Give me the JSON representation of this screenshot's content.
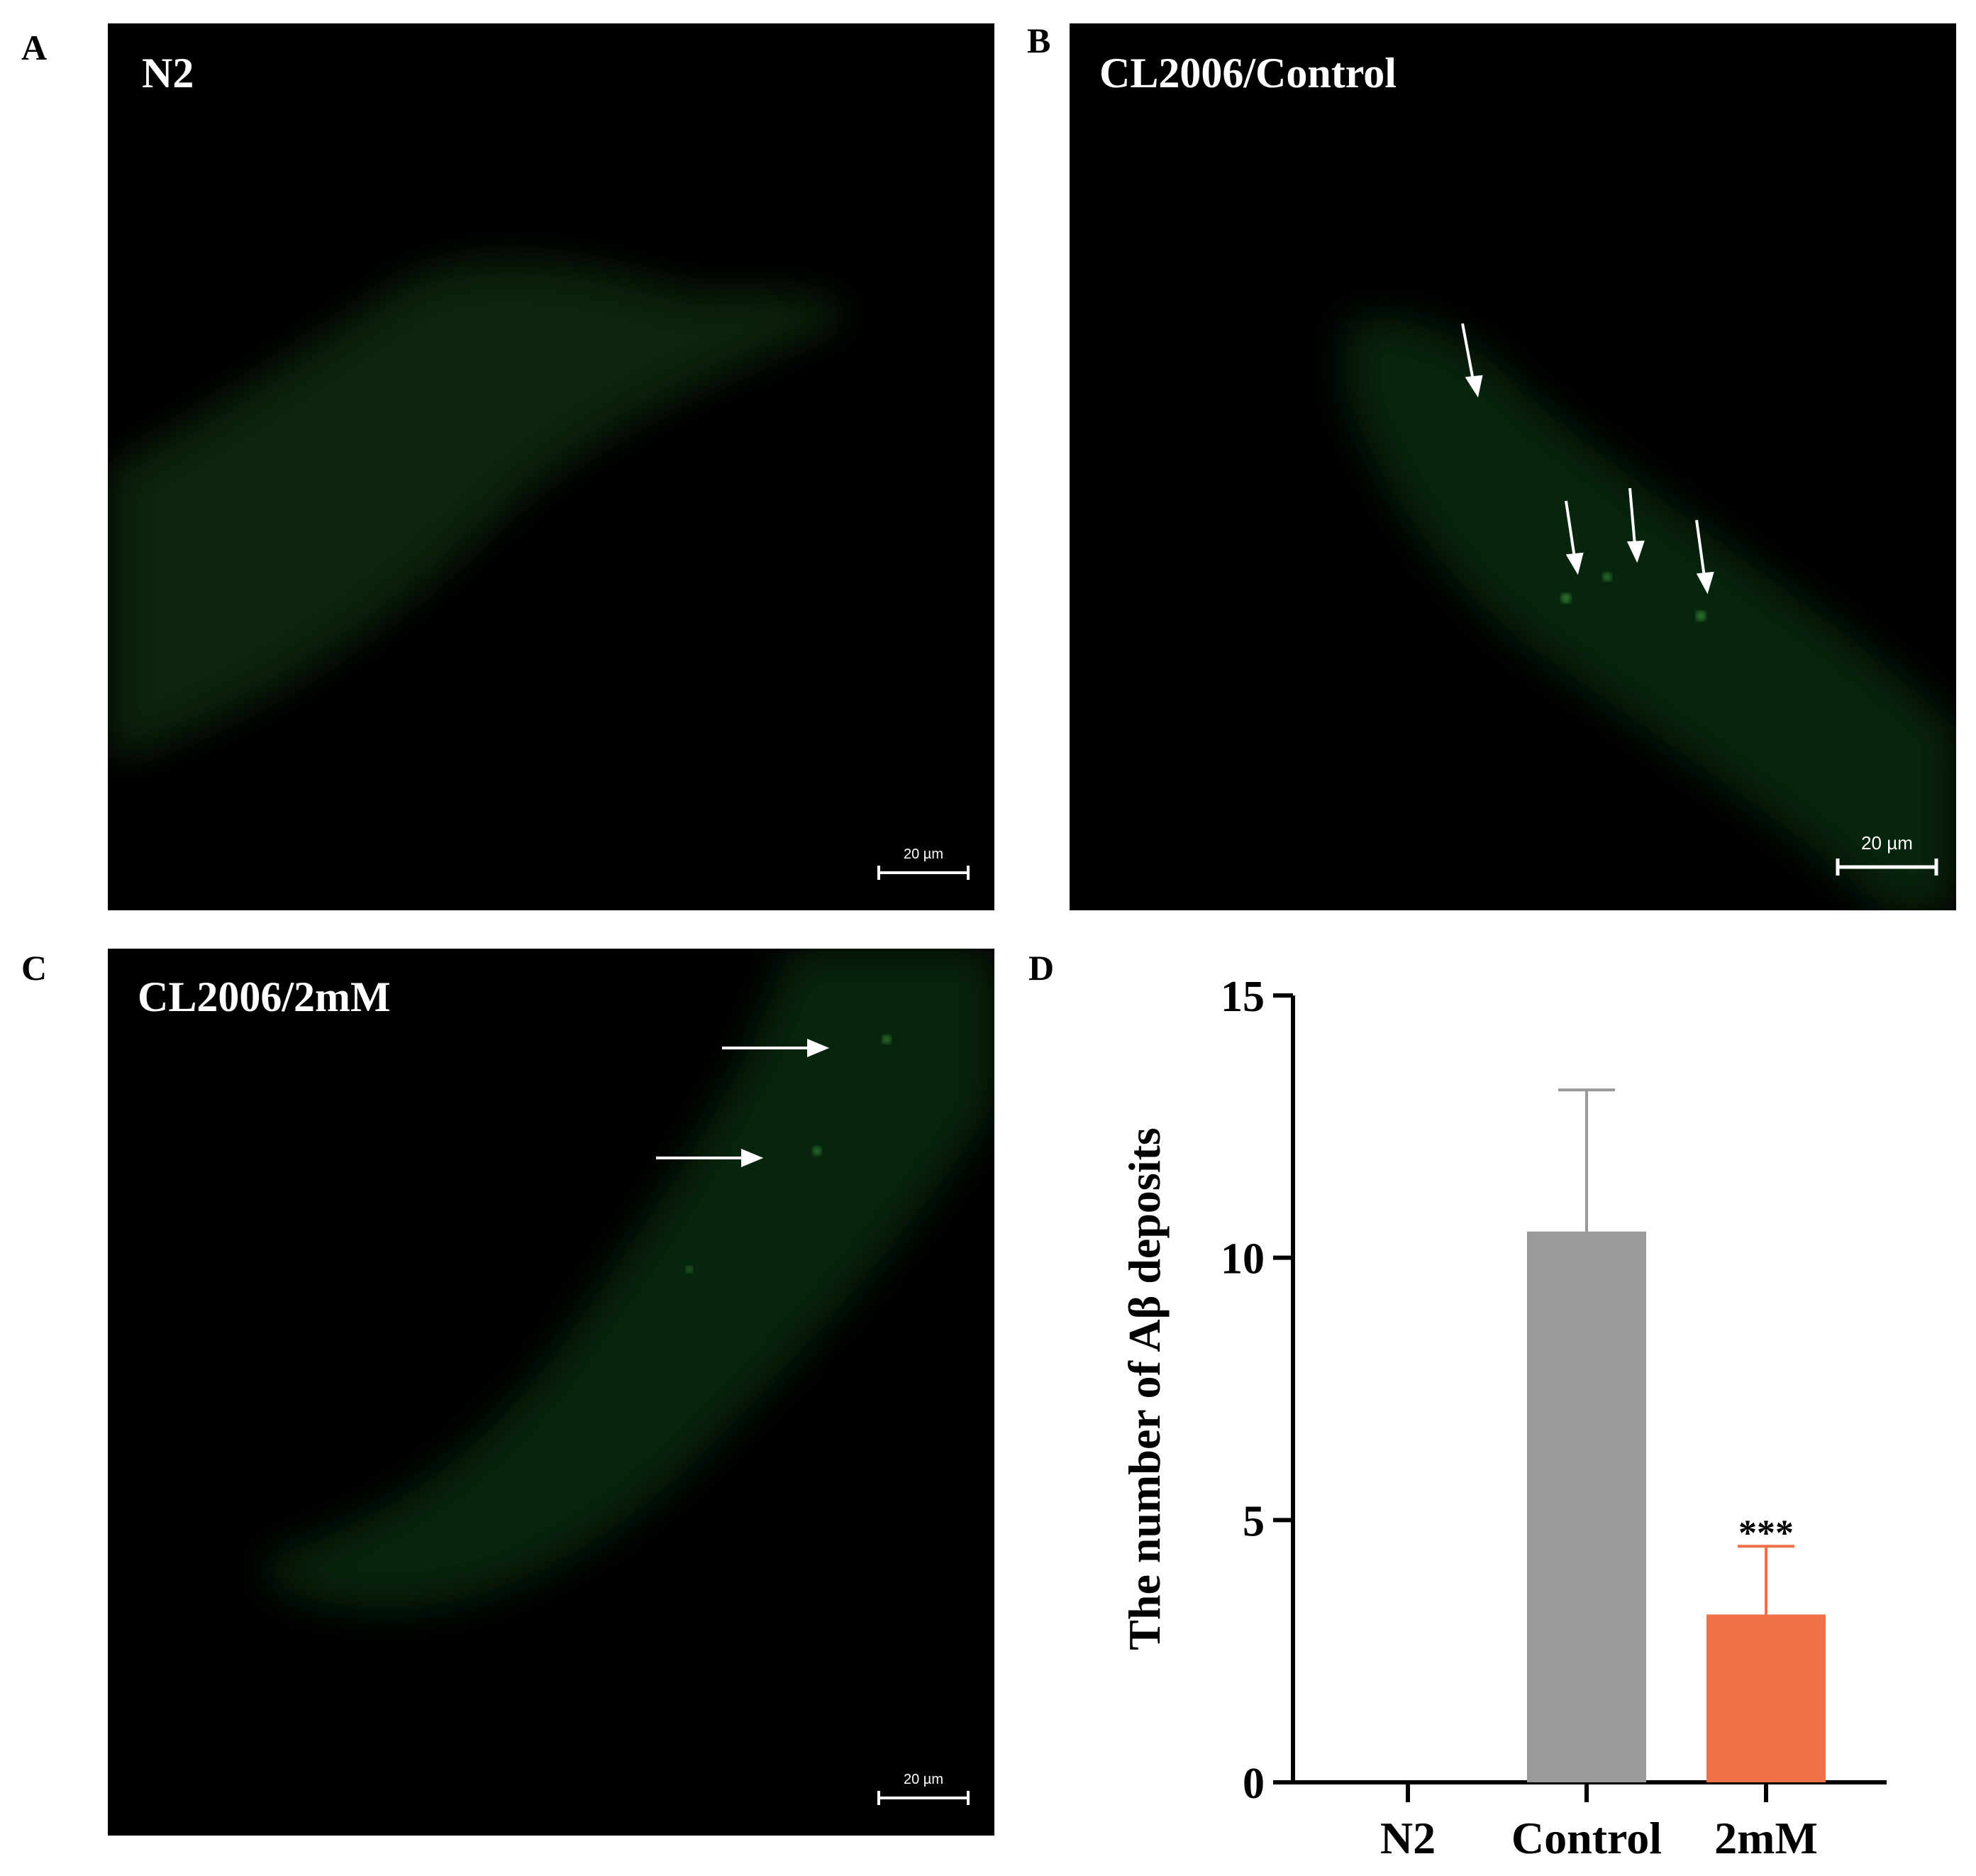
{
  "panels": [
    {
      "letter": "A",
      "label": "N2",
      "scalebar": "20 µm"
    },
    {
      "letter": "B",
      "label": "CL2006/Control",
      "scalebar": "20 µm"
    },
    {
      "letter": "C",
      "label": "CL2006/2mM",
      "scalebar": "20 µm"
    },
    {
      "letter": "D"
    }
  ],
  "colors": {
    "fluorescence": "#1f5a1f",
    "control_bar": "#9a9a9a",
    "treated_bar": "#f07048",
    "treated_errorbar": "#f07048",
    "arrow": "#ffffff",
    "background": "#000000"
  },
  "chart_data": {
    "type": "bar",
    "title": "",
    "xlabel": "",
    "ylabel": "The number of Aβ deposits",
    "categories": [
      "N2",
      "Control",
      "2mM"
    ],
    "values": [
      0,
      10.5,
      3.2
    ],
    "error": [
      0,
      2.7,
      1.3
    ],
    "annotations": [
      {
        "category": "2mM",
        "text": "***"
      }
    ],
    "ylim": [
      0,
      15
    ],
    "yticks": [
      0,
      5,
      10,
      15
    ],
    "grid": false,
    "legend": "none"
  }
}
